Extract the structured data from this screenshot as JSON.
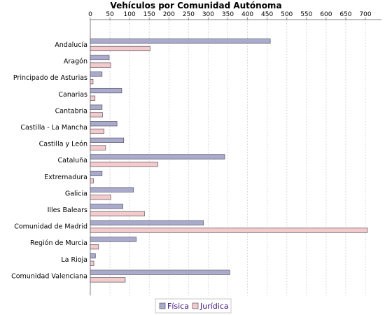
{
  "chart_data": {
    "type": "bar",
    "orientation": "horizontal",
    "title": "Vehículos por Comunidad Autónoma",
    "xlim": [
      0,
      750
    ],
    "xticks": [
      0,
      50,
      100,
      150,
      200,
      250,
      300,
      350,
      400,
      450,
      500,
      550,
      600,
      650,
      700
    ],
    "grid": true,
    "legend_position": "bottom",
    "categories": [
      "Andalucía",
      "Aragón",
      "Principado de Asturias",
      "Canarias",
      "Cantabria",
      "Castilla - La Mancha",
      "Castilla y León",
      "Cataluña",
      "Extremadura",
      "Galicia",
      "Illes Balears",
      "Comunidad de Madrid",
      "Región de Murcia",
      "La Rioja",
      "Comunidad Valenciana"
    ],
    "series": [
      {
        "name": "Física",
        "color": "#aaaacc",
        "values": [
          458,
          48,
          30,
          80,
          30,
          68,
          85,
          342,
          30,
          110,
          83,
          288,
          117,
          13,
          355
        ]
      },
      {
        "name": "Jurídica",
        "color": "#f5caca",
        "values": [
          152,
          52,
          7,
          12,
          31,
          35,
          39,
          172,
          8,
          52,
          138,
          705,
          21,
          9,
          89
        ]
      }
    ]
  }
}
